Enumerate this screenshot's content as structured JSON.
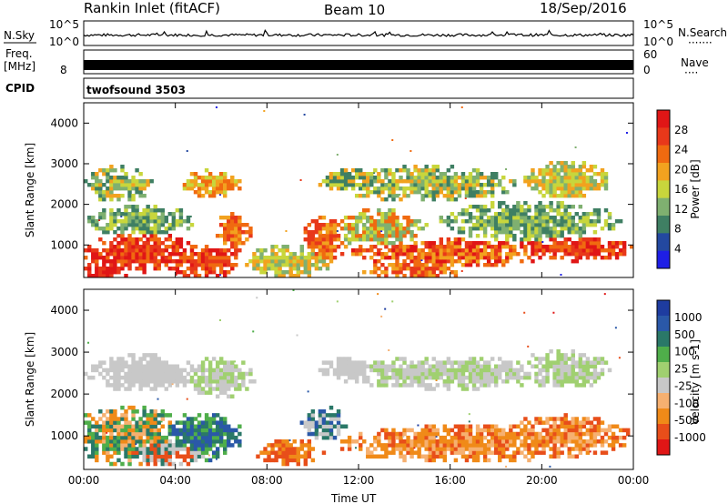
{
  "header": {
    "station": "Rankin Inlet (fitACF)",
    "beam": "Beam 10",
    "date": "18/Sep/2016"
  },
  "panels": {
    "nsky": {
      "left_label": "N.Sky",
      "left_ticks": [
        "10^5",
        "10^0"
      ],
      "right_ticks": [
        "10^5",
        "10^0"
      ],
      "right_label": "N.Search",
      "right_dots": "·······"
    },
    "freq": {
      "left_label_1": "Freq.",
      "left_label_2": "[MHz]",
      "left_tick": "8",
      "right_ticks": [
        "60",
        "0"
      ],
      "right_label": "Nave",
      "right_dots": "····"
    },
    "cpid": {
      "label": "CPID",
      "value": "twofsound 3503"
    }
  },
  "colors": {
    "power": [
      "#1e1ee6",
      "#2348a0",
      "#3f7f63",
      "#7fb070",
      "#c8d63c",
      "#f2a21f",
      "#f06a10",
      "#e8381a",
      "#e01616"
    ],
    "velocity": [
      "#e01616",
      "#e84e1a",
      "#f08a18",
      "#f6b070",
      "#c8c8c8",
      "#a0d070",
      "#4fae4a",
      "#2a7868",
      "#2a58a8",
      "#1e3ca0"
    ]
  },
  "chart_data": [
    {
      "type": "heatmap",
      "title": "Power",
      "ylabel": "Slant Range [km]",
      "ylim": [
        200,
        4500
      ],
      "y_ticks": [
        "1000",
        "2000",
        "3000",
        "4000"
      ],
      "colorbar_label": "Power [dB]",
      "colorbar_ticks": [
        "4",
        "8",
        "12",
        "16",
        "20",
        "24",
        "28"
      ]
    },
    {
      "type": "heatmap",
      "title": "Velocity",
      "ylabel": "Slant Range [km]",
      "ylim": [
        200,
        4500
      ],
      "y_ticks": [
        "1000",
        "2000",
        "3000",
        "4000"
      ],
      "xlabel": "Time UT",
      "x_ticks": [
        "00:00",
        "04:00",
        "08:00",
        "12:00",
        "16:00",
        "20:00",
        "00:00"
      ],
      "colorbar_label": "Velocity [m s-1]",
      "colorbar_ticks": [
        "1000",
        "500",
        "100",
        "25",
        "-25",
        "-100",
        "-500",
        "-1000"
      ]
    }
  ]
}
